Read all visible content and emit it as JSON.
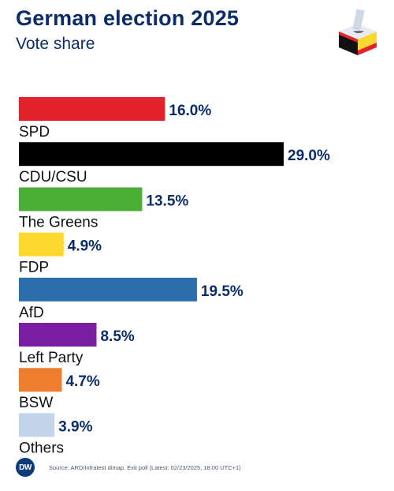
{
  "header": {
    "title": "German election 2025",
    "subtitle": "Vote share"
  },
  "chart_data": {
    "type": "bar",
    "orientation": "horizontal",
    "title": "German election 2025",
    "subtitle": "Vote share",
    "categories": [
      "SPD",
      "CDU/CSU",
      "The Greens",
      "FDP",
      "AfD",
      "Left Party",
      "BSW",
      "Others"
    ],
    "values": [
      16.0,
      29.0,
      13.5,
      4.9,
      19.5,
      8.5,
      4.7,
      3.9
    ],
    "value_labels": [
      "16.0%",
      "29.0%",
      "13.5%",
      "4.9%",
      "19.5%",
      "8.5%",
      "4.7%",
      "3.9%"
    ],
    "colors": [
      "#e3222c",
      "#000000",
      "#4caf37",
      "#fcd72e",
      "#2a6fac",
      "#7b1fa2",
      "#ee7d2e",
      "#c2d5ea"
    ],
    "label_color": "#0a2d68",
    "xlim": [
      0,
      29.0
    ],
    "grid": false,
    "legend": "none"
  },
  "footer": {
    "logo_text": "DW",
    "source": "Source: ARD/Infratest dimap. Exit poll (Latest: 02/23/2025, 18:00 UTC+1)"
  },
  "colors": {
    "title": "#0a2d68",
    "logo_circle": "#0b3b7a"
  },
  "icons": {
    "ballot_box": "ballot-box-icon",
    "brand": "dw-logo"
  }
}
